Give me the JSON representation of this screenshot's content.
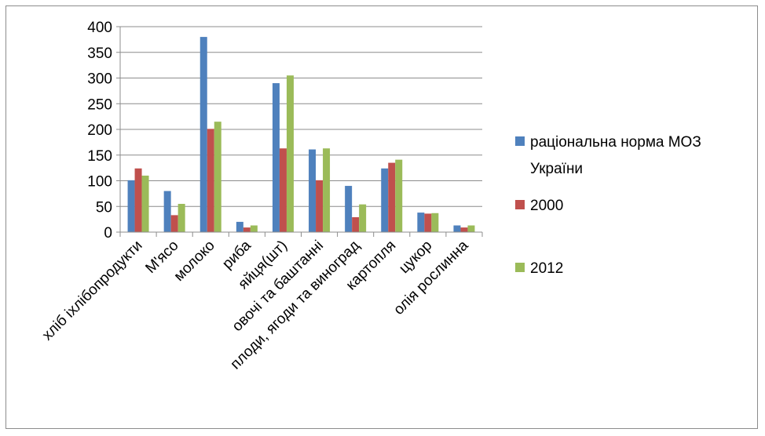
{
  "chart_data": {
    "type": "bar",
    "categories": [
      "хліб іхлібопродукти",
      "М'ясо",
      "молоко",
      "риба",
      "яйця(шт)",
      "овочі та баштанні",
      "плоди, ягоди та виноград",
      "картопля",
      "цукор",
      "олія рослинна"
    ],
    "series": [
      {
        "name": "раціональна норма МОЗ України",
        "color": "#4F81BD",
        "values": [
          101,
          80,
          380,
          20,
          290,
          161,
          90,
          124,
          38,
          13
        ]
      },
      {
        "name": "2000",
        "color": "#C0504D",
        "values": [
          124,
          33,
          201,
          9,
          163,
          101,
          29,
          135,
          36,
          9
        ]
      },
      {
        "name": "2012",
        "color": "#9BBB59",
        "values": [
          110,
          55,
          215,
          13,
          305,
          163,
          54,
          141,
          37,
          13
        ]
      }
    ],
    "legend_labels": [
      [
        "раціональна норма МОЗ",
        "України"
      ],
      [
        "2000"
      ],
      [
        "2012"
      ]
    ],
    "ylim": [
      0,
      400
    ],
    "yticks": [
      "0",
      "50",
      "100",
      "150",
      "200",
      "250",
      "300",
      "350",
      "400"
    ],
    "grid": true,
    "legend_position": "right"
  }
}
